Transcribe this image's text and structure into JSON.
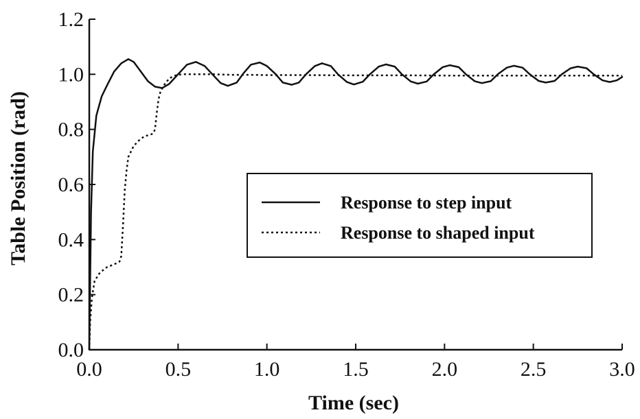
{
  "chart_data": {
    "type": "line",
    "title": "",
    "xlabel": "Time (sec)",
    "ylabel": "Table Position (rad)",
    "xlim": [
      0,
      3
    ],
    "ylim": [
      0,
      1.2
    ],
    "xticks": [
      0,
      0.5,
      1,
      1.5,
      2,
      2.5,
      3
    ],
    "xtick_labels": [
      "0.0",
      "0.5",
      "1.0",
      "1.5",
      "2.0",
      "2.5",
      "3.0"
    ],
    "yticks": [
      0,
      0.2,
      0.4,
      0.6,
      0.8,
      1,
      1.2
    ],
    "ytick_labels": [
      "0.0",
      "0.2",
      "0.4",
      "0.6",
      "0.8",
      "1.0",
      "1.2"
    ],
    "grid": false,
    "legend_position": "center-right",
    "series": [
      {
        "name": "Response to step input",
        "style": "solid",
        "color": "#111111",
        "x": [
          0,
          0.01,
          0.02,
          0.04,
          0.07,
          0.1,
          0.14,
          0.18,
          0.22,
          0.25,
          0.29,
          0.33,
          0.37,
          0.41,
          0.45,
          0.5,
          0.55,
          0.6,
          0.65,
          0.7,
          0.74,
          0.78,
          0.83,
          0.87,
          0.91,
          0.96,
          1.0,
          1.05,
          1.09,
          1.14,
          1.18,
          1.22,
          1.27,
          1.31,
          1.36,
          1.4,
          1.45,
          1.49,
          1.54,
          1.58,
          1.63,
          1.67,
          1.72,
          1.76,
          1.81,
          1.85,
          1.9,
          1.94,
          1.99,
          2.03,
          2.08,
          2.12,
          2.17,
          2.21,
          2.26,
          2.3,
          2.35,
          2.39,
          2.44,
          2.48,
          2.53,
          2.57,
          2.62,
          2.66,
          2.71,
          2.75,
          2.8,
          2.84,
          2.89,
          2.93,
          2.97,
          3.0
        ],
        "y": [
          0,
          0.5,
          0.72,
          0.85,
          0.92,
          0.96,
          1.01,
          1.04,
          1.055,
          1.045,
          1.01,
          0.975,
          0.955,
          0.95,
          0.965,
          1.0,
          1.035,
          1.045,
          1.03,
          0.995,
          0.968,
          0.958,
          0.97,
          1.005,
          1.035,
          1.043,
          1.03,
          1.0,
          0.97,
          0.962,
          0.97,
          1.0,
          1.03,
          1.04,
          1.03,
          1.0,
          0.972,
          0.963,
          0.973,
          1.0,
          1.028,
          1.036,
          1.028,
          1.0,
          0.974,
          0.966,
          0.974,
          1.0,
          1.026,
          1.033,
          1.026,
          1.0,
          0.975,
          0.968,
          0.975,
          1.0,
          1.024,
          1.031,
          1.024,
          1.0,
          0.976,
          0.97,
          0.976,
          1.0,
          1.022,
          1.028,
          1.022,
          1.0,
          0.978,
          0.972,
          0.978,
          0.99
        ]
      },
      {
        "name": "Response to shaped input",
        "style": "dotted",
        "color": "#111111",
        "x": [
          0,
          0.005,
          0.015,
          0.03,
          0.06,
          0.1,
          0.14,
          0.17,
          0.18,
          0.19,
          0.2,
          0.21,
          0.22,
          0.25,
          0.28,
          0.31,
          0.34,
          0.36,
          0.37,
          0.38,
          0.39,
          0.4,
          0.42,
          0.45,
          0.48,
          0.52,
          0.56,
          0.6,
          0.7,
          0.8,
          0.9,
          1.0,
          1.2,
          1.5,
          1.8,
          2.1,
          2.4,
          2.7,
          3.0
        ],
        "y": [
          0,
          0.1,
          0.19,
          0.25,
          0.28,
          0.3,
          0.31,
          0.32,
          0.34,
          0.45,
          0.58,
          0.65,
          0.7,
          0.74,
          0.76,
          0.775,
          0.78,
          0.785,
          0.8,
          0.86,
          0.91,
          0.935,
          0.96,
          0.985,
          0.995,
          1.0,
          1.0,
          1.0,
          1.0,
          0.998,
          0.998,
          0.997,
          0.997,
          0.996,
          0.996,
          0.995,
          0.995,
          0.995,
          0.995
        ]
      }
    ]
  }
}
